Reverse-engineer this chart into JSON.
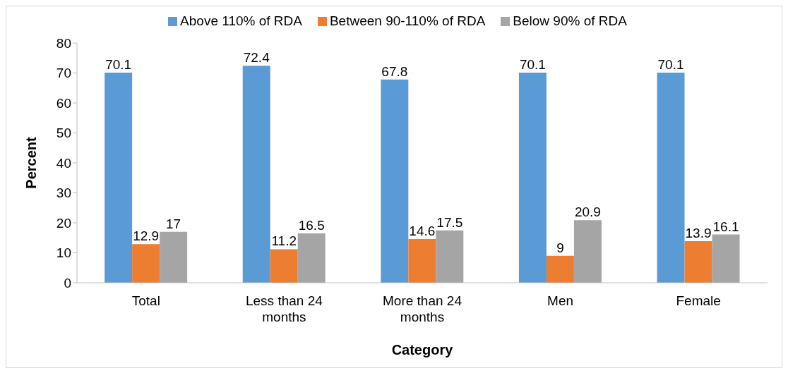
{
  "chart_data": {
    "type": "bar",
    "xlabel": "Category",
    "ylabel": "Percent",
    "categories": [
      "Total",
      "Less than 24 months",
      "More than 24 months",
      "Men",
      "Female"
    ],
    "series": [
      {
        "name": "Above 110% of RDA",
        "color": "#5b9bd5",
        "values": [
          70.1,
          72.4,
          67.8,
          70.1,
          70.1
        ]
      },
      {
        "name": "Between 90-110% of RDA",
        "color": "#ed7d31",
        "values": [
          12.9,
          11.2,
          14.6,
          9,
          13.9
        ]
      },
      {
        "name": "Below 90% of RDA",
        "color": "#a5a5a5",
        "values": [
          17,
          16.5,
          17.5,
          20.9,
          16.1
        ]
      }
    ],
    "ylim": [
      0,
      80
    ],
    "yticks": [
      0,
      10,
      20,
      30,
      40,
      50,
      60,
      70,
      80
    ],
    "grid": false,
    "legend": "top",
    "data_labels": true
  }
}
